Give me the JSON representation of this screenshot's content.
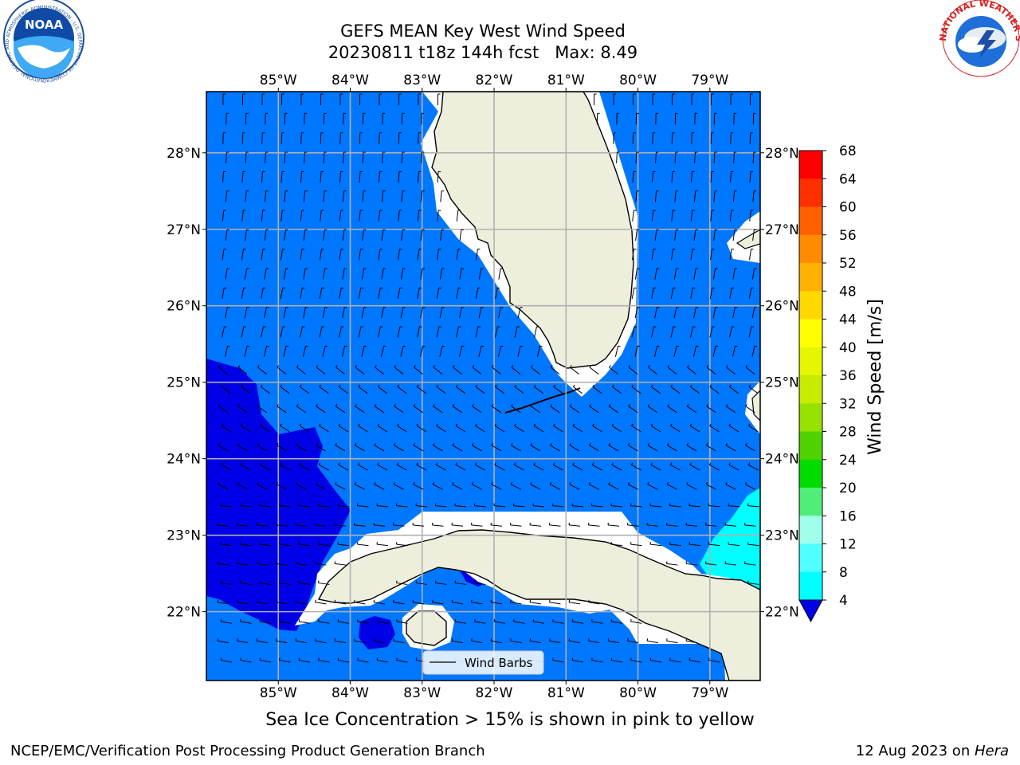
{
  "title": {
    "line1": "GEFS MEAN Key West Wind Speed",
    "line2": "20230811 t18z 144h fcst   Max: 8.49"
  },
  "map": {
    "lon_labels": [
      "85°W",
      "84°W",
      "83°W",
      "82°W",
      "81°W",
      "80°W",
      "79°W"
    ],
    "lat_labels": [
      "28°N",
      "27°N",
      "26°N",
      "25°N",
      "24°N",
      "23°N",
      "22°N"
    ],
    "lon_values": [
      -85,
      -84,
      -83,
      -82,
      -81,
      -80,
      -79
    ],
    "lat_values": [
      28,
      27,
      26,
      25,
      24,
      23,
      22
    ],
    "lon_range": [
      -86,
      -78.3
    ],
    "lat_range": [
      21.1,
      28.8
    ],
    "legend_label": "Wind Barbs",
    "colors": {
      "ocean_4_8": "#0077ff",
      "ocean_0_4": "#0000e6",
      "ocean_8_12": "#00ffff",
      "land": "#eeeedc",
      "grid": "#b0b0b0"
    }
  },
  "colorbar": {
    "label": "Wind Speed [m/s]",
    "ticks": [
      "68",
      "64",
      "60",
      "56",
      "52",
      "48",
      "44",
      "40",
      "36",
      "32",
      "28",
      "24",
      "20",
      "16",
      "12",
      "8",
      "4"
    ],
    "colors": [
      "#ff0000",
      "#ff3000",
      "#ff6000",
      "#ff8c00",
      "#ffb000",
      "#ffd800",
      "#ffff00",
      "#e6f500",
      "#c8eb00",
      "#96e100",
      "#50d200",
      "#00dc00",
      "#50ee78",
      "#a0ffeb",
      "#50ffff",
      "#00ffff",
      "#0078ff"
    ],
    "extend_color": "#0000e6"
  },
  "caption": "Sea Ice Concentration > 15% is shown in pink to yellow",
  "footer": {
    "left": "NCEP/EMC/Verification Post Processing Product Generation Branch",
    "right_prefix": "12 Aug 2023 on ",
    "right_machine": "Hera"
  },
  "logos": {
    "noaa_text": "NOAA",
    "noaa_ring": "NATIONAL OCEANIC AND ATMOSPHERIC ADMINISTRATION · U.S. DEPARTMENT OF COMMERCE",
    "nws_ring": "NATIONAL WEATHER SERVICE"
  }
}
